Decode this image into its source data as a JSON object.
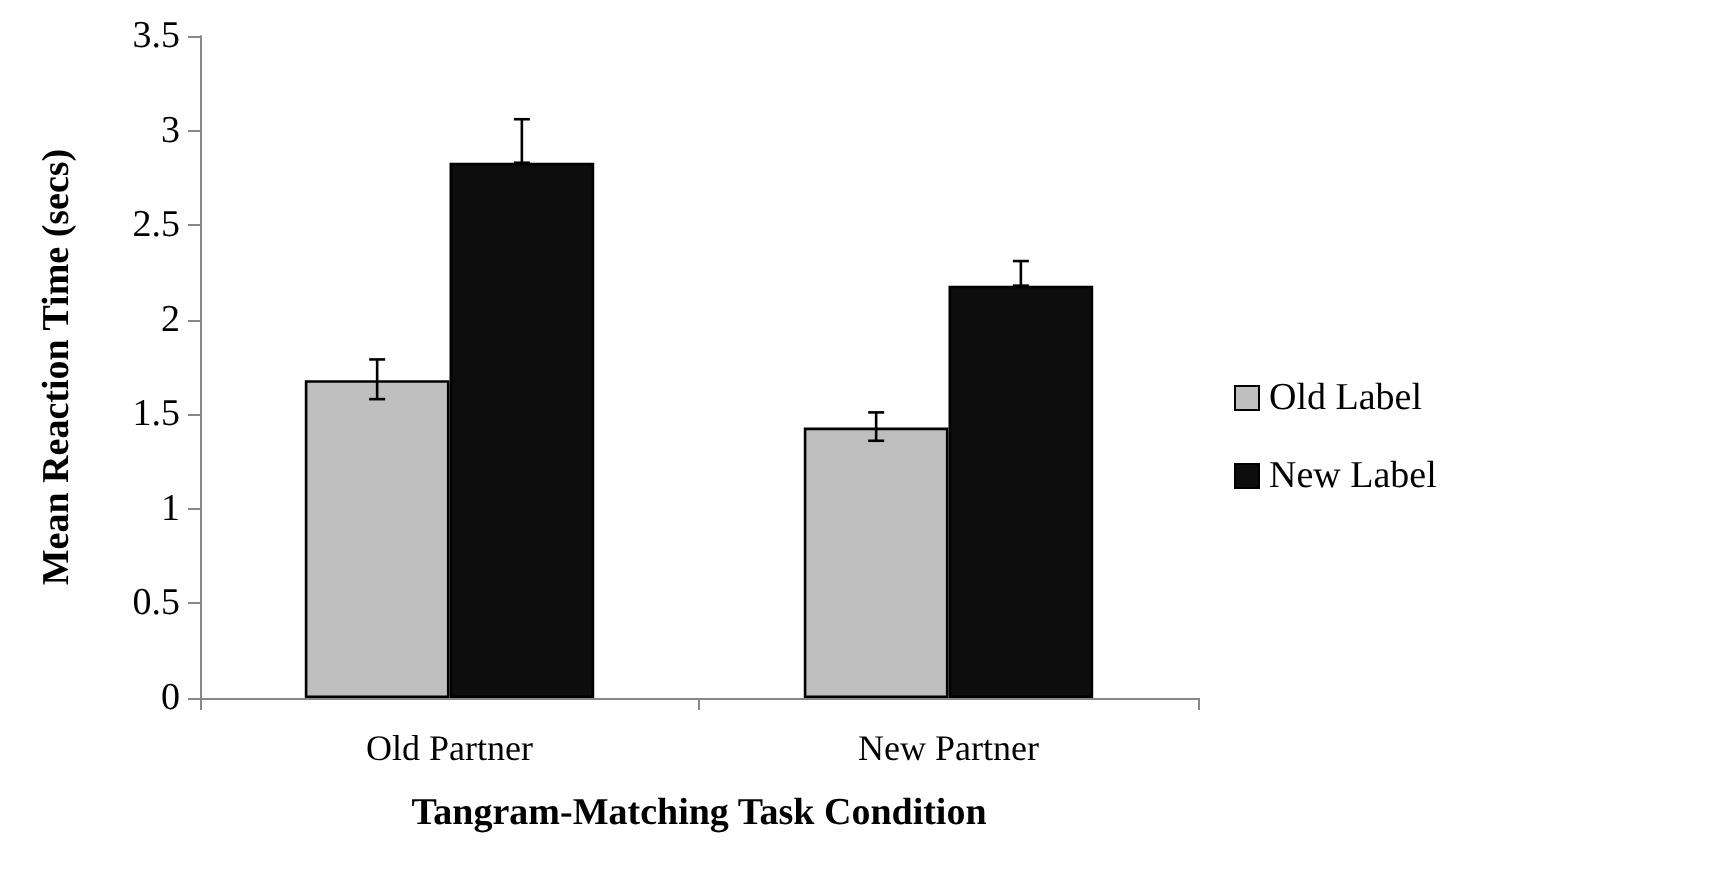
{
  "chart_data": {
    "type": "bar",
    "xlabel": "Tangram-Matching Task Condition",
    "ylabel": "Mean Reaction Time (secs)",
    "categories": [
      "Old Partner",
      "New Partner"
    ],
    "series": [
      {
        "name": "Old Label",
        "color": "#bfbfbf",
        "values": [
          1.68,
          1.43
        ],
        "errors": [
          [
            1.58,
            1.79
          ],
          [
            1.36,
            1.51
          ]
        ]
      },
      {
        "name": "New Label",
        "color": "#0d0d0d",
        "values": [
          2.83,
          2.18
        ],
        "errors": [
          [
            2.83,
            3.06
          ],
          [
            2.18,
            2.31
          ]
        ]
      }
    ],
    "ylim": [
      0,
      3.5
    ],
    "yticks": [
      0,
      0.5,
      1,
      1.5,
      2,
      2.5,
      3,
      3.5
    ],
    "grid": false,
    "legend": "right"
  }
}
